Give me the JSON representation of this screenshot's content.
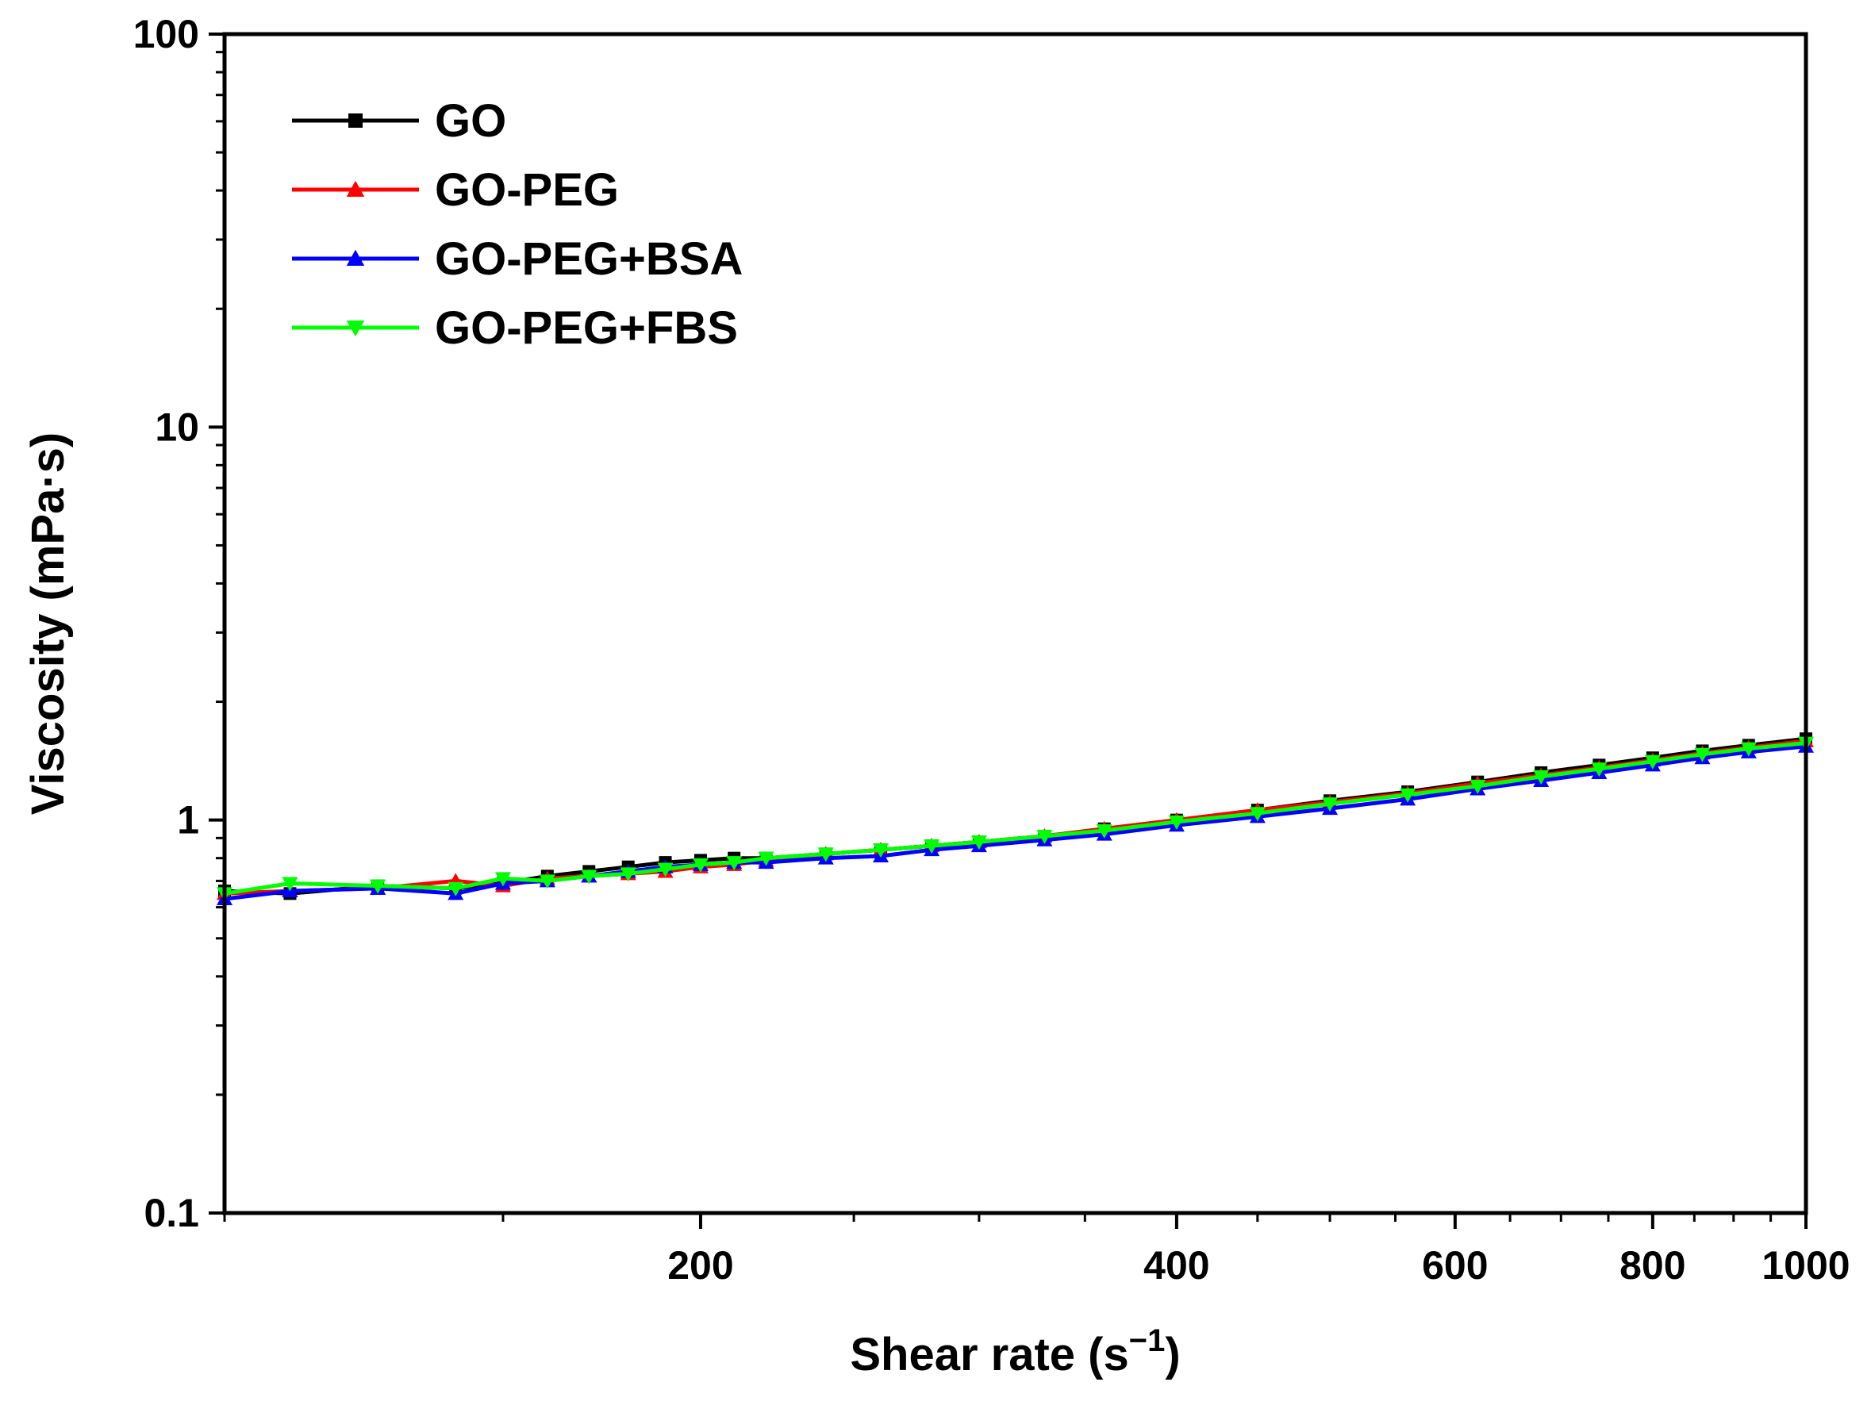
{
  "chart_data": {
    "type": "line",
    "xscale": "log",
    "yscale": "log",
    "xlabel": "Shear rate (s",
    "xlabel_sup": "−1",
    "xlabel_close": ")",
    "ylabel": "Viscosity (mPa·s)",
    "xlim": [
      100,
      1000
    ],
    "ylim": [
      0.1,
      100
    ],
    "xticks": [
      {
        "value": 200,
        "label": "200"
      },
      {
        "value": 400,
        "label": "400"
      },
      {
        "value": 600,
        "label": "600"
      },
      {
        "value": 800,
        "label": "800"
      },
      {
        "value": 1000,
        "label": "1000"
      }
    ],
    "yticks": [
      {
        "value": 0.1,
        "label": "0.1"
      },
      {
        "value": 1,
        "label": "1"
      },
      {
        "value": 10,
        "label": "10"
      },
      {
        "value": 100,
        "label": "100"
      }
    ],
    "legend_position": "top-left",
    "series": [
      {
        "name": "GO",
        "color": "#000000",
        "marker": "square",
        "points": [
          [
            100,
            0.66
          ],
          [
            110,
            0.65
          ],
          [
            125,
            0.68
          ],
          [
            140,
            0.67
          ],
          [
            150,
            0.69
          ],
          [
            160,
            0.72
          ],
          [
            170,
            0.74
          ],
          [
            180,
            0.76
          ],
          [
            190,
            0.78
          ],
          [
            200,
            0.79
          ],
          [
            210,
            0.8
          ],
          [
            220,
            0.8
          ],
          [
            240,
            0.82
          ],
          [
            260,
            0.84
          ],
          [
            280,
            0.86
          ],
          [
            300,
            0.88
          ],
          [
            330,
            0.91
          ],
          [
            360,
            0.95
          ],
          [
            400,
            1.0
          ],
          [
            450,
            1.06
          ],
          [
            500,
            1.12
          ],
          [
            560,
            1.18
          ],
          [
            620,
            1.25
          ],
          [
            680,
            1.32
          ],
          [
            740,
            1.38
          ],
          [
            800,
            1.44
          ],
          [
            860,
            1.5
          ],
          [
            920,
            1.55
          ],
          [
            1000,
            1.61
          ]
        ]
      },
      {
        "name": "GO-PEG",
        "color": "#ff0000",
        "marker": "triangle-up",
        "points": [
          [
            100,
            0.65
          ],
          [
            110,
            0.66
          ],
          [
            125,
            0.67
          ],
          [
            140,
            0.7
          ],
          [
            150,
            0.68
          ],
          [
            160,
            0.71
          ],
          [
            170,
            0.72
          ],
          [
            180,
            0.73
          ],
          [
            190,
            0.74
          ],
          [
            200,
            0.76
          ],
          [
            210,
            0.77
          ],
          [
            220,
            0.79
          ],
          [
            240,
            0.82
          ],
          [
            260,
            0.84
          ],
          [
            280,
            0.86
          ],
          [
            300,
            0.88
          ],
          [
            330,
            0.91
          ],
          [
            360,
            0.95
          ],
          [
            400,
            1.0
          ],
          [
            450,
            1.06
          ],
          [
            500,
            1.11
          ],
          [
            560,
            1.17
          ],
          [
            620,
            1.24
          ],
          [
            680,
            1.3
          ],
          [
            740,
            1.36
          ],
          [
            800,
            1.42
          ],
          [
            860,
            1.48
          ],
          [
            920,
            1.53
          ],
          [
            1000,
            1.59
          ]
        ]
      },
      {
        "name": "GO-PEG+BSA",
        "color": "#0000ff",
        "marker": "triangle-up",
        "points": [
          [
            100,
            0.63
          ],
          [
            110,
            0.66
          ],
          [
            125,
            0.67
          ],
          [
            140,
            0.65
          ],
          [
            150,
            0.69
          ],
          [
            160,
            0.7
          ],
          [
            170,
            0.72
          ],
          [
            180,
            0.74
          ],
          [
            190,
            0.76
          ],
          [
            200,
            0.77
          ],
          [
            210,
            0.78
          ],
          [
            220,
            0.78
          ],
          [
            240,
            0.8
          ],
          [
            260,
            0.81
          ],
          [
            280,
            0.84
          ],
          [
            300,
            0.86
          ],
          [
            330,
            0.89
          ],
          [
            360,
            0.92
          ],
          [
            400,
            0.97
          ],
          [
            450,
            1.02
          ],
          [
            500,
            1.07
          ],
          [
            560,
            1.13
          ],
          [
            620,
            1.2
          ],
          [
            680,
            1.26
          ],
          [
            740,
            1.32
          ],
          [
            800,
            1.38
          ],
          [
            860,
            1.44
          ],
          [
            920,
            1.49
          ],
          [
            1000,
            1.54
          ]
        ]
      },
      {
        "name": "GO-PEG+FBS",
        "color": "#00ff00",
        "marker": "triangle-down",
        "points": [
          [
            100,
            0.65
          ],
          [
            110,
            0.69
          ],
          [
            125,
            0.68
          ],
          [
            140,
            0.67
          ],
          [
            150,
            0.71
          ],
          [
            160,
            0.7
          ],
          [
            170,
            0.72
          ],
          [
            180,
            0.73
          ],
          [
            190,
            0.75
          ],
          [
            200,
            0.77
          ],
          [
            210,
            0.78
          ],
          [
            220,
            0.8
          ],
          [
            240,
            0.82
          ],
          [
            260,
            0.84
          ],
          [
            280,
            0.86
          ],
          [
            300,
            0.88
          ],
          [
            330,
            0.91
          ],
          [
            360,
            0.94
          ],
          [
            400,
            0.99
          ],
          [
            450,
            1.04
          ],
          [
            500,
            1.1
          ],
          [
            560,
            1.16
          ],
          [
            620,
            1.22
          ],
          [
            680,
            1.29
          ],
          [
            740,
            1.35
          ],
          [
            800,
            1.41
          ],
          [
            860,
            1.47
          ],
          [
            920,
            1.52
          ],
          [
            1000,
            1.57
          ]
        ]
      }
    ]
  }
}
